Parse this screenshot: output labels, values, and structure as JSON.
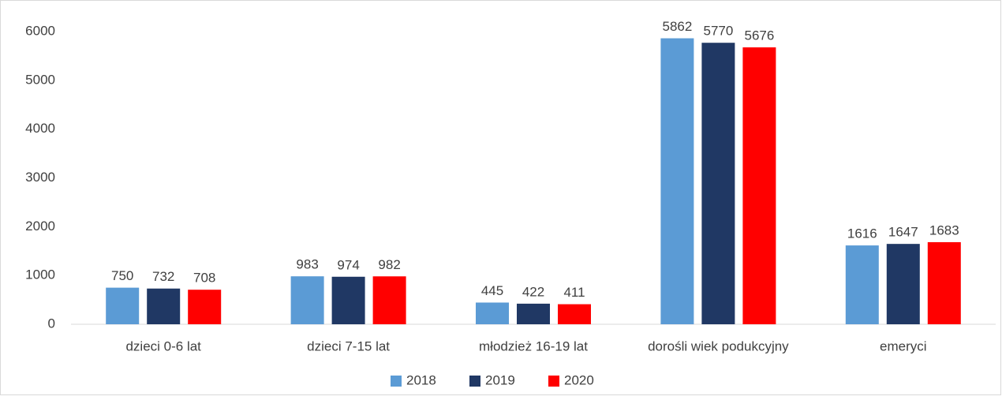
{
  "chart_data": {
    "type": "bar",
    "categories": [
      "dzieci 0-6 lat",
      "dzieci 7-15 lat",
      "młodzież 16-19 lat",
      "dorośli wiek podukcyjny",
      "emeryci"
    ],
    "series": [
      {
        "name": "2018",
        "color": "#5b9bd5",
        "values": [
          750,
          983,
          445,
          5862,
          1616
        ]
      },
      {
        "name": "2019",
        "color": "#203864",
        "values": [
          732,
          974,
          422,
          5770,
          1647
        ]
      },
      {
        "name": "2020",
        "color": "#ff0000",
        "values": [
          708,
          982,
          411,
          5676,
          1683
        ]
      }
    ],
    "ylim": [
      0,
      6000
    ],
    "yticks": [
      0,
      1000,
      2000,
      3000,
      4000,
      5000,
      6000
    ],
    "grid": false,
    "legend": "bottom"
  }
}
